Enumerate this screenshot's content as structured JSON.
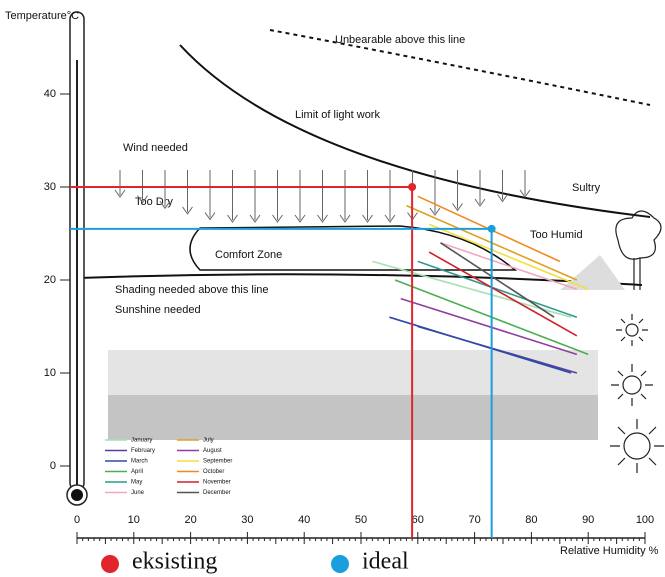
{
  "chart_data": {
    "type": "bioclimatic",
    "y_label": "Temperature°C",
    "x_label": "Relative Humidity %",
    "xlim": [
      0,
      100
    ],
    "xticks": [
      0,
      10,
      20,
      30,
      40,
      50,
      60,
      70,
      80,
      90,
      100
    ],
    "ylim": [
      0,
      50
    ],
    "yticks": [
      0,
      10,
      20,
      30,
      40
    ],
    "annotations": {
      "unbearable": "Unbearable above this line",
      "light_work": "Limit of light work",
      "wind": "Wind needed",
      "sultry": "Sultry",
      "too_dry": "Too Dry",
      "too_humid": "Too Humid",
      "comfort": "Comfort Zone",
      "shading": "Shading needed above this line",
      "sunshine": "Sunshine needed"
    },
    "points": [
      {
        "name": "eksisting",
        "color": "#e0262b",
        "x": 59,
        "y": 30
      },
      {
        "name": "ideal",
        "color": "#1a9fdc",
        "x": 73,
        "y": 25.5
      }
    ],
    "series": [
      {
        "name": "January",
        "color": "#a8e0b0",
        "x": [
          52,
          87
        ],
        "y": [
          22,
          16
        ]
      },
      {
        "name": "February",
        "color": "#5a3e9e",
        "x": [
          60,
          88
        ],
        "y": [
          15,
          10
        ]
      },
      {
        "name": "March",
        "color": "#2d4aa8",
        "x": [
          55,
          87
        ],
        "y": [
          16,
          10
        ]
      },
      {
        "name": "April",
        "color": "#4caf50",
        "x": [
          56,
          90
        ],
        "y": [
          20,
          12
        ]
      },
      {
        "name": "May",
        "color": "#2f9c8a",
        "x": [
          60,
          88
        ],
        "y": [
          22,
          16
        ]
      },
      {
        "name": "June",
        "color": "#f2a6c0",
        "x": [
          64,
          88
        ],
        "y": [
          24,
          19
        ]
      },
      {
        "name": "July",
        "color": "#e0a020",
        "x": [
          58,
          88
        ],
        "y": [
          28,
          20
        ]
      },
      {
        "name": "August",
        "color": "#8e3fa0",
        "x": [
          57,
          88
        ],
        "y": [
          18,
          12
        ]
      },
      {
        "name": "September",
        "color": "#f0e040",
        "x": [
          62,
          90
        ],
        "y": [
          26,
          19
        ]
      },
      {
        "name": "October",
        "color": "#f08a20",
        "x": [
          60,
          85
        ],
        "y": [
          29,
          22
        ]
      },
      {
        "name": "November",
        "color": "#d0202a",
        "x": [
          62,
          88
        ],
        "y": [
          23,
          14
        ]
      },
      {
        "name": "December",
        "color": "#555555",
        "x": [
          64,
          84
        ],
        "y": [
          24,
          16
        ]
      }
    ]
  }
}
